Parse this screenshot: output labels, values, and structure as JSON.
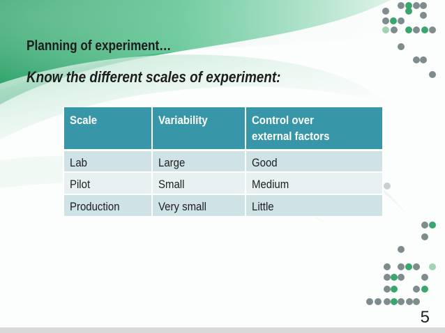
{
  "slide": {
    "title": "Planning of experiment…",
    "subtitle": "Know the different scales of experiment:",
    "page_number": "5"
  },
  "table": {
    "headers": [
      "Scale",
      "Variability",
      "Control over external factors"
    ],
    "header_control_line1": "Control over",
    "header_control_line2": "external factors",
    "rows": [
      [
        "Lab",
        "Large",
        "Good"
      ],
      [
        "Pilot",
        "Small",
        "Medium"
      ],
      [
        "Production",
        "Very small",
        "Little"
      ]
    ]
  },
  "colors": {
    "header_bg": "#3797a8",
    "row_odd_bg": "#cfe3e7",
    "row_even_bg": "#e8f1f2",
    "accent_green": "#3aa66e",
    "dot_gray": "#7f8c8d"
  }
}
